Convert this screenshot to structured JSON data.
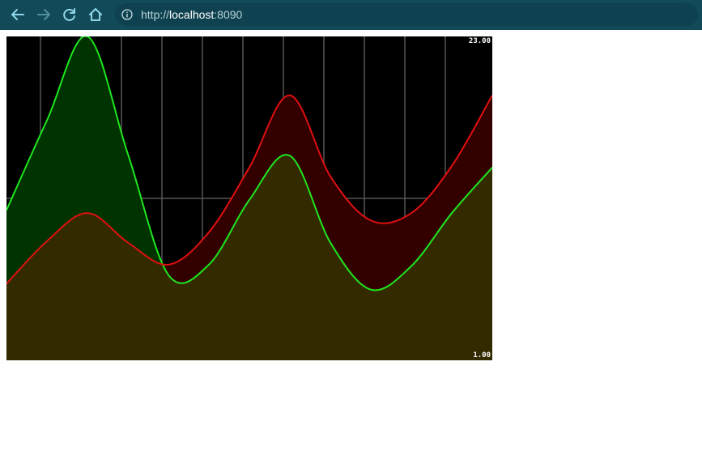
{
  "browser": {
    "url_scheme": "http://",
    "url_host": "localhost",
    "url_port": ":8090",
    "icons": [
      "back-arrow-icon",
      "forward-arrow-icon",
      "reload-icon",
      "home-icon",
      "info-icon"
    ]
  },
  "chart_data": {
    "type": "area",
    "ylim": [
      1,
      23
    ],
    "y_max_label": "23.00",
    "y_min_label": "1.00",
    "grid": true,
    "x": [
      0,
      1,
      2,
      3,
      4,
      5,
      6,
      7,
      8,
      9,
      10,
      11,
      12
    ],
    "series": [
      {
        "color": "#1ee61e",
        "fill": "#003300",
        "values": [
          11.2,
          17.3,
          23.0,
          15.0,
          6.8,
          7.5,
          11.9,
          14.9,
          9.0,
          5.8,
          7.4,
          11.0,
          14.1
        ]
      },
      {
        "color": "#e01010",
        "fill": "#330000",
        "values": [
          6.2,
          9.1,
          11.0,
          9.0,
          7.5,
          9.7,
          14.1,
          19.0,
          13.5,
          10.5,
          11.0,
          14.2,
          19.0
        ]
      }
    ],
    "overlap_fill": "#332a00"
  }
}
